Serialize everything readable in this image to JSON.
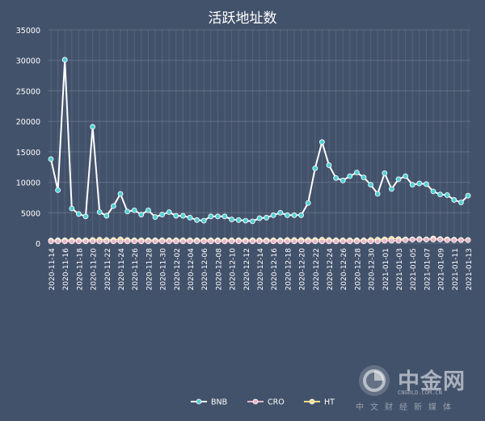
{
  "chart_data": {
    "type": "line",
    "title": "活跃地址数",
    "ylim": [
      0,
      35000
    ],
    "yticks": [
      0,
      5000,
      10000,
      15000,
      20000,
      25000,
      30000,
      35000
    ],
    "grid": true,
    "legend_position": "bottom-center",
    "x": [
      "2020-11-14",
      "2020-11-15",
      "2020-11-16",
      "2020-11-17",
      "2020-11-18",
      "2020-11-19",
      "2020-11-20",
      "2020-11-21",
      "2020-11-22",
      "2020-11-23",
      "2020-11-24",
      "2020-11-25",
      "2020-11-26",
      "2020-11-27",
      "2020-11-28",
      "2020-11-29",
      "2020-11-30",
      "2020-12-01",
      "2020-12-02",
      "2020-12-03",
      "2020-12-04",
      "2020-12-05",
      "2020-12-06",
      "2020-12-07",
      "2020-12-08",
      "2020-12-09",
      "2020-12-10",
      "2020-12-11",
      "2020-12-12",
      "2020-12-13",
      "2020-12-14",
      "2020-12-15",
      "2020-12-16",
      "2020-12-17",
      "2020-12-18",
      "2020-12-19",
      "2020-12-20",
      "2020-12-21",
      "2020-12-22",
      "2020-12-23",
      "2020-12-24",
      "2020-12-25",
      "2020-12-26",
      "2020-12-27",
      "2020-12-28",
      "2020-12-29",
      "2020-12-30",
      "2020-12-31",
      "2021-01-01",
      "2021-01-02",
      "2021-01-03",
      "2021-01-04",
      "2021-01-05",
      "2021-01-06",
      "2021-01-07",
      "2021-01-08",
      "2021-01-09",
      "2021-01-10",
      "2021-01-11",
      "2021-01-12",
      "2021-01-13"
    ],
    "xtick_labels": [
      "2020-11-14",
      "2020-11-16",
      "2020-11-18",
      "2020-11-20",
      "2020-11-22",
      "2020-11-24",
      "2020-11-26",
      "2020-11-28",
      "2020-11-30",
      "2020-12-02",
      "2020-12-04",
      "2020-12-06",
      "2020-12-08",
      "2020-12-10",
      "2020-12-12",
      "2020-12-14",
      "2020-12-16",
      "2020-12-18",
      "2020-12-20",
      "2020-12-22",
      "2020-12-24",
      "2020-12-26",
      "2020-12-28",
      "2020-12-30",
      "2021-01-01",
      "2021-01-03",
      "2021-01-05",
      "2021-01-07",
      "2021-01-09",
      "2021-01-11",
      "2021-01-13"
    ],
    "series": [
      {
        "name": "BNB",
        "color": "#ffffff",
        "marker_color": "#4fd0d6",
        "values": [
          13800,
          8700,
          30100,
          5700,
          4800,
          4400,
          19100,
          5100,
          4500,
          6100,
          8100,
          5200,
          5400,
          4700,
          5400,
          4300,
          4700,
          5100,
          4500,
          4500,
          4200,
          3800,
          3700,
          4400,
          4400,
          4400,
          3900,
          3800,
          3700,
          3600,
          4100,
          4200,
          4600,
          5000,
          4600,
          4600,
          4600,
          6600,
          12300,
          16600,
          12800,
          10700,
          10300,
          11000,
          11600,
          10800,
          9600,
          8100,
          11500,
          8900,
          10500,
          11000,
          9600,
          9800,
          9700,
          8500,
          8000,
          7900,
          7100,
          6700,
          7800
        ]
      },
      {
        "name": "CRO",
        "color": "#e7b6c7",
        "marker_color": "#e7b6c7",
        "values": [
          300,
          300,
          300,
          300,
          300,
          300,
          300,
          300,
          300,
          300,
          300,
          300,
          300,
          300,
          300,
          300,
          300,
          300,
          300,
          300,
          300,
          300,
          300,
          300,
          300,
          300,
          300,
          300,
          300,
          300,
          300,
          300,
          300,
          300,
          300,
          300,
          300,
          300,
          300,
          300,
          300,
          300,
          300,
          300,
          300,
          300,
          300,
          300,
          400,
          400,
          400,
          500,
          600,
          600,
          600,
          600,
          600,
          500,
          500,
          500,
          500
        ]
      },
      {
        "name": "HT",
        "color": "#f5dd8e",
        "marker_color": "#f5dd8e",
        "values": [
          450,
          500,
          500,
          500,
          500,
          500,
          550,
          600,
          550,
          550,
          650,
          550,
          500,
          500,
          500,
          500,
          500,
          500,
          500,
          500,
          500,
          500,
          500,
          500,
          500,
          500,
          500,
          500,
          500,
          500,
          500,
          500,
          500,
          500,
          550,
          550,
          550,
          550,
          550,
          600,
          550,
          500,
          500,
          500,
          500,
          500,
          550,
          600,
          650,
          750,
          700,
          650,
          650,
          700,
          650,
          800,
          700,
          650,
          600,
          550,
          550
        ]
      }
    ]
  },
  "watermark": {
    "brand": "中金网",
    "domain": "CNGOLD.COM.CN",
    "tagline": "中文财经新媒体"
  }
}
